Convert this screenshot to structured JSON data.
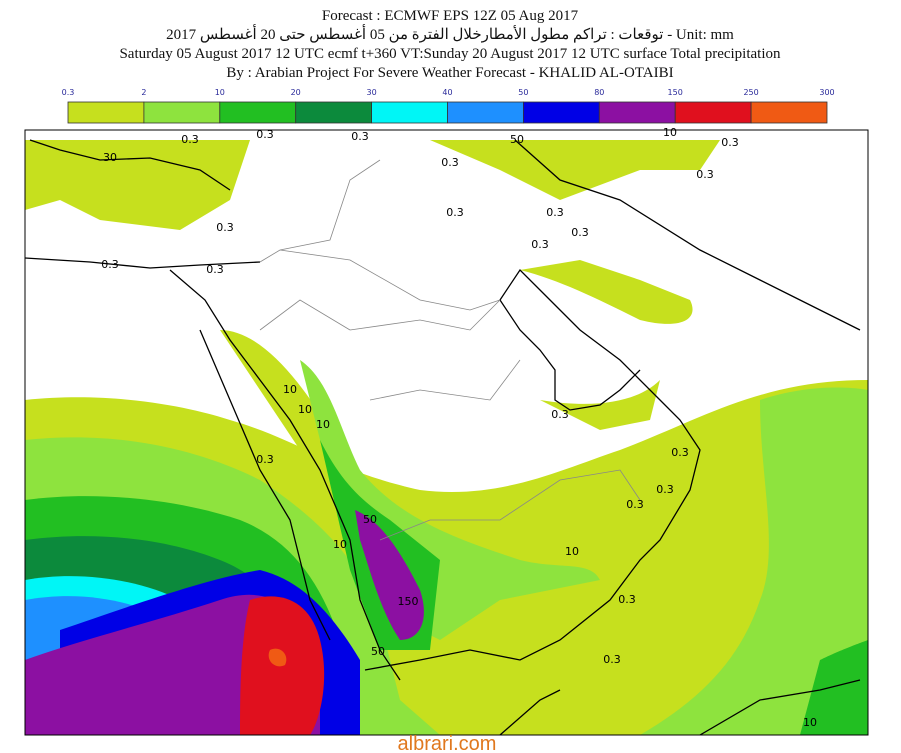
{
  "title_lines": [
    "Forecast : ECMWF EPS 12Z 05 Aug 2017",
    "توقعات : تراكم مطول الأمطارخلال الفترة من 05 أغسطس حتى 20 أغسطس 2017 - Unit: mm",
    "Saturday 05 August 2017 12 UTC ecmf t+360 VT:Sunday 20 August 2017 12 UTC surface  Total precipitation",
    "By : Arabian Project For Severe Weather Forecast - KHALID AL-OTAIBI"
  ],
  "legend": {
    "levels": [
      0.3,
      2,
      10,
      20,
      30,
      40,
      50,
      80,
      150,
      250,
      300
    ],
    "colors": [
      "#c6e01e",
      "#8ee33e",
      "#22bf22",
      "#0c8a3c",
      "#00f6f6",
      "#1e90ff",
      "#0000e6",
      "#8c10a2",
      "#e0101e",
      "#f05a14"
    ]
  },
  "contour_labels": [
    "0.3",
    "0.3",
    "30",
    "0.3",
    "0.3",
    "0.3",
    "0.3",
    "0.3",
    "0.3",
    "0.3",
    "0.3",
    "0.3",
    "10",
    "10",
    "10",
    "50",
    "10",
    "150",
    "50",
    "10",
    "0.3",
    "0.3",
    "0.3",
    "0.3",
    "0.3",
    "0.3",
    "10",
    "0.3",
    "0.3",
    "0.3",
    "50",
    "10"
  ],
  "footer": "albrari.com"
}
